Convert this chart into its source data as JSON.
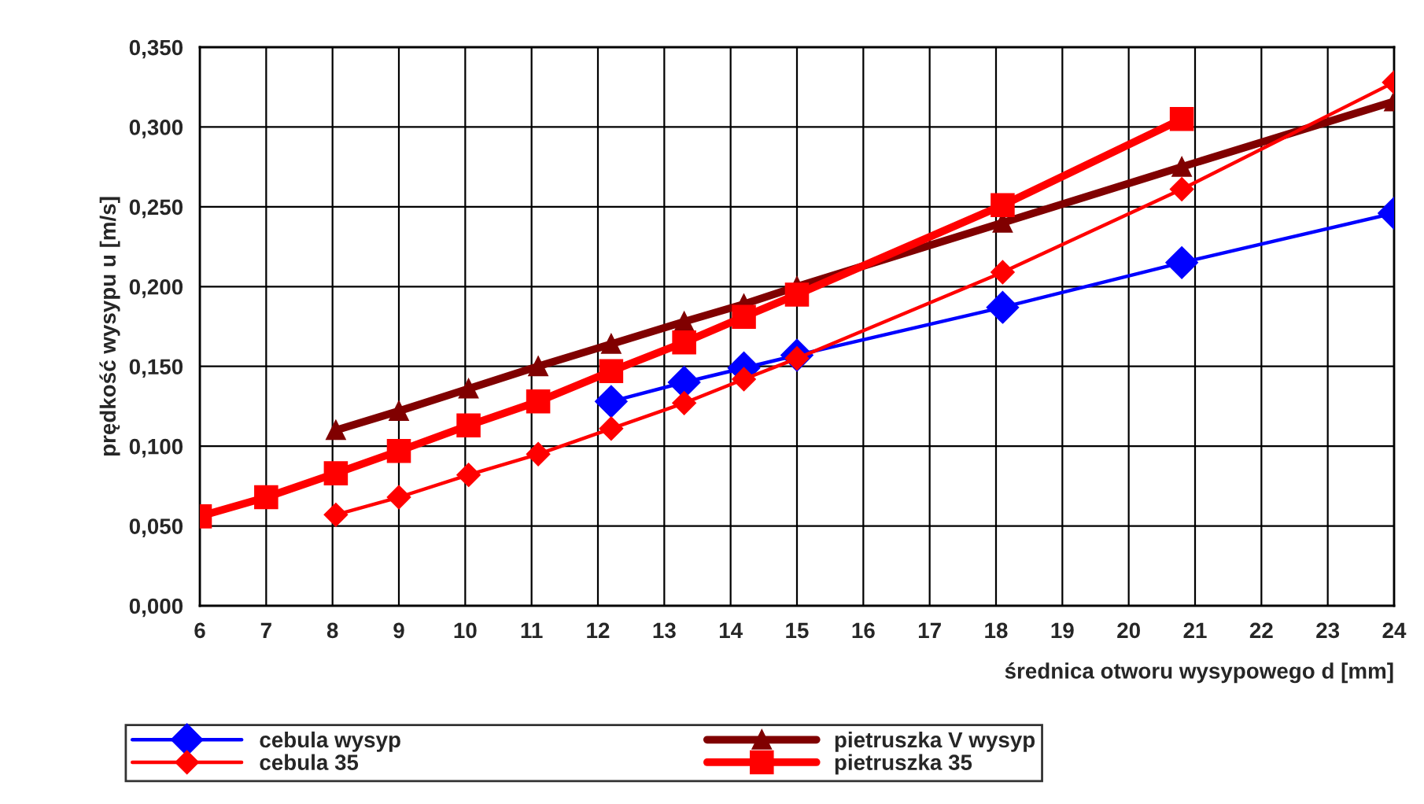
{
  "chart_data": {
    "type": "line",
    "xlabel": "średnica otworu wysypowego d [mm]",
    "ylabel": "prędkość wysypu u [m/s]",
    "xlim": [
      6,
      24
    ],
    "xticks": [
      6,
      7,
      8,
      9,
      10,
      11,
      12,
      13,
      14,
      15,
      16,
      17,
      18,
      19,
      20,
      21,
      22,
      23,
      24
    ],
    "ylim": [
      0,
      0.35
    ],
    "yticks": [
      {
        "value": 0,
        "label": "0,000"
      },
      {
        "value": 0.05,
        "label": "0,050"
      },
      {
        "value": 0.1,
        "label": "0,100"
      },
      {
        "value": 0.15,
        "label": "0,150"
      },
      {
        "value": 0.2,
        "label": "0,200"
      },
      {
        "value": 0.25,
        "label": "0,250"
      },
      {
        "value": 0.3,
        "label": "0,300"
      },
      {
        "value": 0.35,
        "label": "0,350"
      }
    ],
    "grid": true,
    "legend": "bottom",
    "series": [
      {
        "name": "cebula wysyp",
        "color": "#0000ff",
        "marker": "diamond",
        "x": [
          12.2,
          13.3,
          14.2,
          15,
          18.1,
          20.8,
          24
        ],
        "values": [
          0.128,
          0.14,
          0.149,
          0.157,
          0.187,
          0.215,
          0.246
        ]
      },
      {
        "name": "pietruszka V wysyp",
        "color": "#800000",
        "marker": "triangle",
        "x": [
          8.05,
          9,
          10.05,
          11.1,
          12.2,
          13.3,
          14.2,
          15,
          18.1,
          20.8,
          24
        ],
        "values": [
          0.11,
          0.122,
          0.136,
          0.15,
          0.164,
          0.178,
          0.189,
          0.2,
          0.24,
          0.275,
          0.316
        ]
      },
      {
        "name": "cebula 35",
        "color": "#ff0000",
        "marker": "diamond",
        "x": [
          8.05,
          9,
          10.05,
          11.1,
          12.2,
          13.3,
          14.2,
          15,
          18.1,
          20.8,
          24
        ],
        "values": [
          0.057,
          0.068,
          0.082,
          0.095,
          0.111,
          0.127,
          0.142,
          0.155,
          0.209,
          0.261,
          0.328
        ]
      },
      {
        "name": "pietruszka 35",
        "color": "#ff0000",
        "marker": "square",
        "x": [
          6,
          7,
          8.05,
          9,
          10.05,
          11.1,
          12.2,
          13.3,
          14.2,
          15,
          18.1,
          20.8
        ],
        "values": [
          0.056,
          0.068,
          0.083,
          0.097,
          0.113,
          0.128,
          0.147,
          0.165,
          0.181,
          0.195,
          0.251,
          0.305
        ]
      }
    ]
  }
}
